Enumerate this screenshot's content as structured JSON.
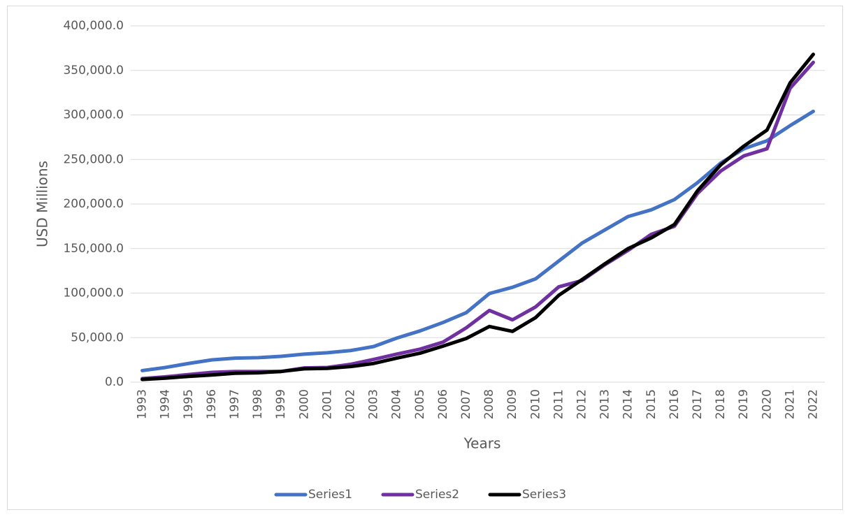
{
  "chart_data": {
    "type": "line",
    "y_label": "USD Millions",
    "x_label": "Years",
    "categories": [
      "1993",
      "1994",
      "1995",
      "1996",
      "1997",
      "1998",
      "1999",
      "2000",
      "2001",
      "2002",
      "2003",
      "2004",
      "2005",
      "2006",
      "2007",
      "2008",
      "2009",
      "2010",
      "2011",
      "2012",
      "2013",
      "2014",
      "2015",
      "2016",
      "2017",
      "2018",
      "2019",
      "2020",
      "2021",
      "2022"
    ],
    "series": [
      {
        "name": "Series1",
        "color": "#4472c4",
        "values": [
          13000,
          16500,
          21000,
          25000,
          27000,
          27500,
          29000,
          31500,
          33000,
          35500,
          40000,
          49500,
          57500,
          67000,
          78000,
          99500,
          106500,
          116000,
          136000,
          156000,
          171000,
          186000,
          193500,
          205000,
          224000,
          246000,
          262000,
          271000,
          288000,
          304000
        ]
      },
      {
        "name": "Series2",
        "color": "#7030a0",
        "values": [
          4000,
          6000,
          8500,
          11000,
          12000,
          12000,
          12000,
          16000,
          16500,
          20000,
          25500,
          31500,
          37000,
          45000,
          61000,
          80500,
          70000,
          84500,
          107000,
          114000,
          132000,
          148000,
          166000,
          175000,
          212000,
          237000,
          254000,
          262000,
          330000,
          359000
        ]
      },
      {
        "name": "Series3",
        "color": "#000000",
        "values": [
          3000,
          4500,
          6500,
          8000,
          10000,
          10500,
          12000,
          15000,
          15500,
          17500,
          21000,
          27000,
          32500,
          40500,
          49000,
          62500,
          57000,
          72500,
          97500,
          115000,
          133000,
          150000,
          162000,
          177000,
          215000,
          244000,
          265000,
          283000,
          336000,
          368000
        ]
      }
    ],
    "ylim": [
      0,
      400000
    ],
    "yticks": [
      {
        "value": 0,
        "label": "0.0"
      },
      {
        "value": 50000,
        "label": "50,000.0"
      },
      {
        "value": 100000,
        "label": "100,000.0"
      },
      {
        "value": 150000,
        "label": "150,000.0"
      },
      {
        "value": 200000,
        "label": "200,000.0"
      },
      {
        "value": 250000,
        "label": "250,000.0"
      },
      {
        "value": 300000,
        "label": "300,000.0"
      },
      {
        "value": 350000,
        "label": "350,000.0"
      },
      {
        "value": 400000,
        "label": "400,000.0"
      }
    ],
    "grid": true,
    "legend": "bottom"
  }
}
